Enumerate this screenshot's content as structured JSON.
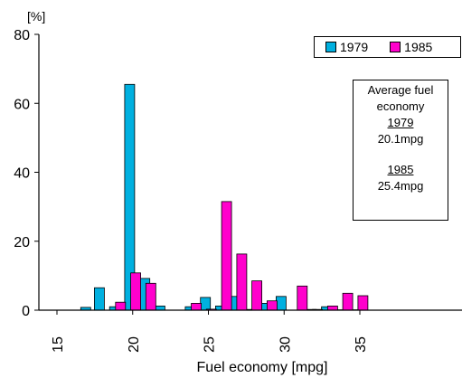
{
  "chart_data": {
    "type": "bar",
    "xlabel": "Fuel economy [mpg]",
    "ylabel": "[%]",
    "xlim": [
      15,
      35
    ],
    "ylim": [
      0,
      80
    ],
    "xticks": [
      "15",
      "20",
      "25",
      "30",
      "35"
    ],
    "yticks": [
      "0",
      "20",
      "40",
      "60",
      "80"
    ],
    "series": [
      {
        "name": "1979",
        "color": "#00b0e0",
        "points": [
          {
            "x": 16.9,
            "y": 0.8
          },
          {
            "x": 17.8,
            "y": 6.5
          },
          {
            "x": 18.8,
            "y": 1.0
          },
          {
            "x": 19.8,
            "y": 65.5
          },
          {
            "x": 20.8,
            "y": 9.2
          },
          {
            "x": 21.8,
            "y": 1.2
          },
          {
            "x": 23.8,
            "y": 1.0
          },
          {
            "x": 24.8,
            "y": 3.7
          },
          {
            "x": 25.8,
            "y": 1.2
          },
          {
            "x": 26.8,
            "y": 4.0
          },
          {
            "x": 27.8,
            "y": 0.2
          },
          {
            "x": 28.8,
            "y": 2.0
          },
          {
            "x": 29.8,
            "y": 4.0
          },
          {
            "x": 31.8,
            "y": 0.2
          },
          {
            "x": 32.8,
            "y": 1.0
          },
          {
            "x": 33.8,
            "y": 0.1
          },
          {
            "x": 34.8,
            "y": 0.1
          }
        ]
      },
      {
        "name": "1985",
        "color": "#ff00cc",
        "points": [
          {
            "x": 19.2,
            "y": 2.3
          },
          {
            "x": 20.2,
            "y": 10.8
          },
          {
            "x": 21.2,
            "y": 7.8
          },
          {
            "x": 24.2,
            "y": 2.0
          },
          {
            "x": 25.2,
            "y": 0.3
          },
          {
            "x": 26.2,
            "y": 31.5
          },
          {
            "x": 27.2,
            "y": 16.3
          },
          {
            "x": 28.2,
            "y": 8.5
          },
          {
            "x": 29.2,
            "y": 2.7
          },
          {
            "x": 31.2,
            "y": 7.0
          },
          {
            "x": 32.2,
            "y": 0.2
          },
          {
            "x": 33.2,
            "y": 1.2
          },
          {
            "x": 34.2,
            "y": 4.9
          },
          {
            "x": 35.2,
            "y": 4.2
          }
        ]
      }
    ],
    "legend": "top-right",
    "annotation": {
      "title": "Average fuel economy",
      "year1": "1979",
      "value1": "20.1mpg",
      "year2": "1985",
      "value2": "25.4mpg"
    }
  }
}
